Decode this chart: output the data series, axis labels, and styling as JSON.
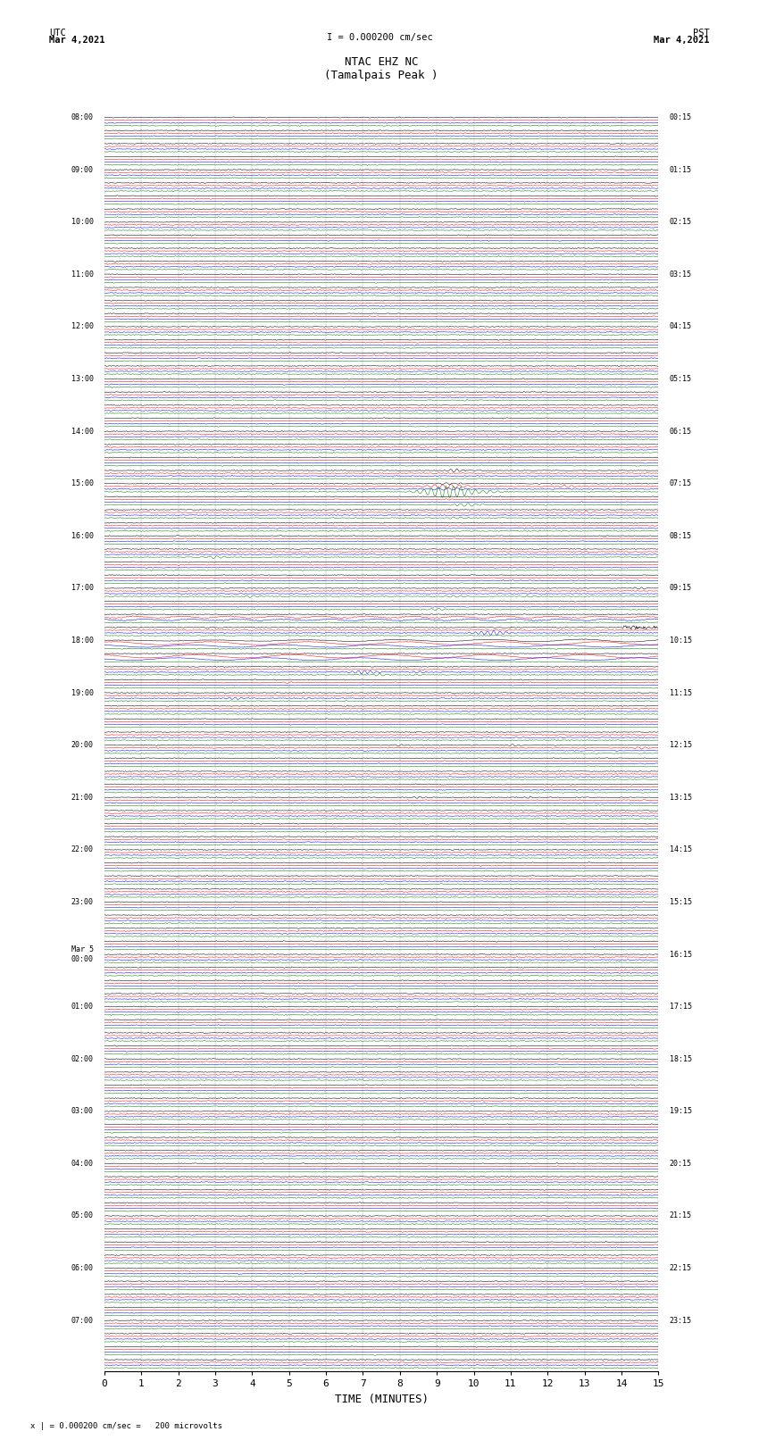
{
  "title_line1": "NTAC EHZ NC",
  "title_line2": "(Tamalpais Peak )",
  "scale_label": "I = 0.000200 cm/sec",
  "bottom_label": "x | = 0.000200 cm/sec =   200 microvolts",
  "left_label": "UTC",
  "left_date": "Mar 4,2021",
  "right_label": "PST",
  "right_date": "Mar 4,2021",
  "xlabel": "TIME (MINUTES)",
  "xlim": [
    0,
    15
  ],
  "xticks": [
    0,
    1,
    2,
    3,
    4,
    5,
    6,
    7,
    8,
    9,
    10,
    11,
    12,
    13,
    14,
    15
  ],
  "background_color": "#ffffff",
  "trace_colors": [
    "black",
    "red",
    "blue",
    "green"
  ],
  "num_rows": 96,
  "traces_per_row": 4,
  "fig_width": 8.5,
  "fig_height": 16.13,
  "utc_labels": [
    "08:00",
    "",
    "",
    "",
    "09:00",
    "",
    "",
    "",
    "10:00",
    "",
    "",
    "",
    "11:00",
    "",
    "",
    "",
    "12:00",
    "",
    "",
    "",
    "13:00",
    "",
    "",
    "",
    "14:00",
    "",
    "",
    "",
    "15:00",
    "",
    "",
    "",
    "16:00",
    "",
    "",
    "",
    "17:00",
    "",
    "",
    "",
    "18:00",
    "",
    "",
    "",
    "19:00",
    "",
    "",
    "",
    "20:00",
    "",
    "",
    "",
    "21:00",
    "",
    "",
    "",
    "22:00",
    "",
    "",
    "",
    "23:00",
    "",
    "",
    "",
    "Mar 5\n00:00",
    "",
    "",
    "",
    "01:00",
    "",
    "",
    "",
    "02:00",
    "",
    "",
    "",
    "03:00",
    "",
    "",
    "",
    "04:00",
    "",
    "",
    "",
    "05:00",
    "",
    "",
    "",
    "06:00",
    "",
    "",
    "",
    "07:00",
    "",
    "",
    ""
  ],
  "pst_labels": [
    "00:15",
    "",
    "",
    "",
    "01:15",
    "",
    "",
    "",
    "02:15",
    "",
    "",
    "",
    "03:15",
    "",
    "",
    "",
    "04:15",
    "",
    "",
    "",
    "05:15",
    "",
    "",
    "",
    "06:15",
    "",
    "",
    "",
    "07:15",
    "",
    "",
    "",
    "08:15",
    "",
    "",
    "",
    "09:15",
    "",
    "",
    "",
    "10:15",
    "",
    "",
    "",
    "11:15",
    "",
    "",
    "",
    "12:15",
    "",
    "",
    "",
    "13:15",
    "",
    "",
    "",
    "14:15",
    "",
    "",
    "",
    "15:15",
    "",
    "",
    "",
    "16:15",
    "",
    "",
    "",
    "17:15",
    "",
    "",
    "",
    "18:15",
    "",
    "",
    "",
    "19:15",
    "",
    "",
    "",
    "20:15",
    "",
    "",
    "",
    "21:15",
    "",
    "",
    "",
    "22:15",
    "",
    "",
    "",
    "23:15",
    "",
    "",
    ""
  ],
  "noise_seed": 42
}
